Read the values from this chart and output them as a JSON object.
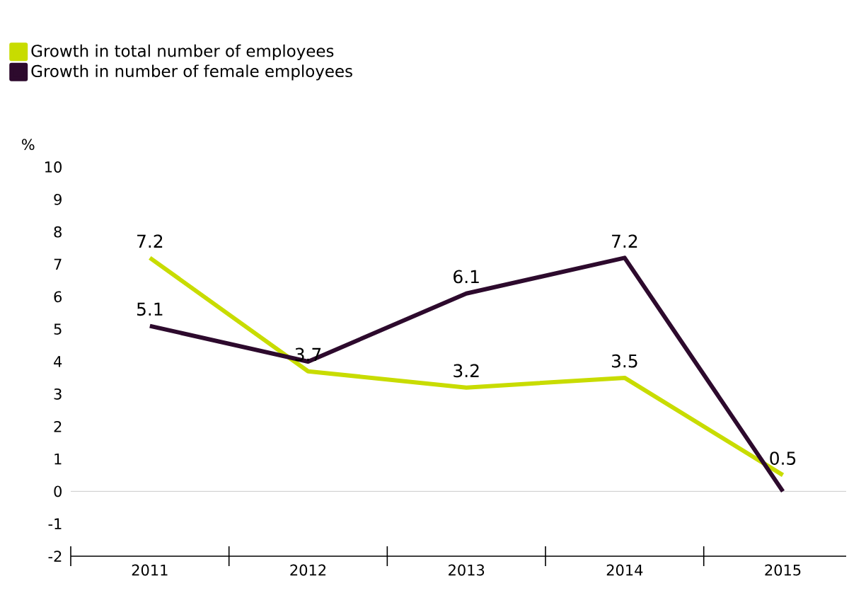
{
  "chart_data": {
    "type": "line",
    "ylabel": "%",
    "categories": [
      "2011",
      "2012",
      "2013",
      "2014",
      "2015"
    ],
    "series": [
      {
        "name": "Growth in total number of employees",
        "color": "#c8dc00",
        "values": [
          7.2,
          3.7,
          3.2,
          3.5,
          0.5
        ],
        "value_labels": [
          "7.2",
          "3.7",
          "3.2",
          "3.5",
          "0.5"
        ]
      },
      {
        "name": "Growth in number of female employees",
        "color": "#2d0a2d",
        "values": [
          5.1,
          4.0,
          6.1,
          7.2,
          0.0
        ],
        "value_labels": [
          "5.1",
          null,
          "6.1",
          "7.2",
          null
        ]
      }
    ],
    "ylim": [
      -2,
      10
    ],
    "yticks": [
      -2,
      -1,
      0,
      1,
      2,
      3,
      4,
      5,
      6,
      7,
      8,
      9,
      10
    ],
    "ref_lines": [
      {
        "axis": "y",
        "value": 0,
        "color": "#bbbbbb"
      }
    ],
    "legend": "top left",
    "marker": "none",
    "line_style": "solid",
    "grid": false
  }
}
